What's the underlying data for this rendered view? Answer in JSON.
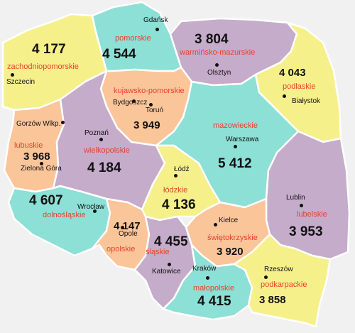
{
  "colors": {
    "yellow": "#f6f08a",
    "teal": "#8de0d6",
    "purple": "#c5acca",
    "orange": "#fbc59a",
    "background": "#f1f1f1",
    "region_name": "#e8412c"
  },
  "regions": [
    {
      "key": "zachodniopomorskie",
      "name": "zachodniopomorskie",
      "value": "4 177",
      "color": "yellow"
    },
    {
      "key": "pomorskie",
      "name": "pomorskie",
      "value": "4 544",
      "color": "teal"
    },
    {
      "key": "warminsko",
      "name": "warmińsko-mazurskie",
      "value": "3 804",
      "color": "purple"
    },
    {
      "key": "podlaskie",
      "name": "podlaskie",
      "value": "4 043",
      "color": "yellow"
    },
    {
      "key": "kujawsko",
      "name": "kujawsko-pomorskie",
      "value": "3 949",
      "color": "orange"
    },
    {
      "key": "lubuskie",
      "name": "lubuskie",
      "value": "3 968",
      "color": "orange"
    },
    {
      "key": "wielkopolskie",
      "name": "wielkopolskie",
      "value": "4 184",
      "color": "purple"
    },
    {
      "key": "mazowieckie",
      "name": "mazowieckie",
      "value": "5 412",
      "color": "teal"
    },
    {
      "key": "lodzkie",
      "name": "łódzkie",
      "value": "4 136",
      "color": "yellow"
    },
    {
      "key": "dolnoslaskie",
      "name": "dolnośląskie",
      "value": "4 607",
      "color": "teal"
    },
    {
      "key": "lubelskie",
      "name": "lubelskie",
      "value": "3 953",
      "color": "purple"
    },
    {
      "key": "opolskie",
      "name": "opolskie",
      "value": "4 147",
      "color": "orange"
    },
    {
      "key": "slaskie",
      "name": "śląskie",
      "value": "4 455",
      "color": "purple"
    },
    {
      "key": "swietokrzyskie",
      "name": "świętokrzyskie",
      "value": "3 920",
      "color": "orange"
    },
    {
      "key": "malopolskie",
      "name": "małopolskie",
      "value": "4 415",
      "color": "teal"
    },
    {
      "key": "podkarpackie",
      "name": "podkarpackie",
      "value": "3 858",
      "color": "yellow"
    }
  ],
  "cities": [
    "Gdańsk",
    "Olsztyn",
    "Szczecin",
    "Bydgoszcz",
    "Toruń",
    "Białystok",
    "Gorzów Wlkp.",
    "Poznań",
    "Warszawa",
    "Zielona Góra",
    "Łódź",
    "Wrocław",
    "Lublin",
    "Kielce",
    "Opole",
    "Katowice",
    "Kraków",
    "Rzeszów"
  ]
}
